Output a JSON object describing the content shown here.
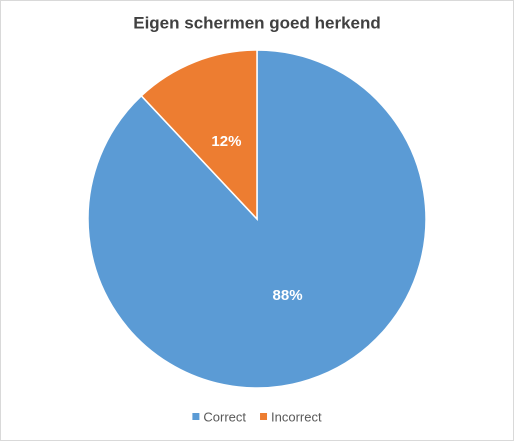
{
  "chart_data": {
    "type": "pie",
    "title": "Eigen schermen goed herkend",
    "categories": [
      "Correct",
      "Incorrect"
    ],
    "values": [
      88,
      12
    ],
    "value_labels": [
      "88%",
      "12%"
    ],
    "colors": [
      "#5b9bd5",
      "#ed7d31"
    ],
    "legend": "bottom"
  }
}
